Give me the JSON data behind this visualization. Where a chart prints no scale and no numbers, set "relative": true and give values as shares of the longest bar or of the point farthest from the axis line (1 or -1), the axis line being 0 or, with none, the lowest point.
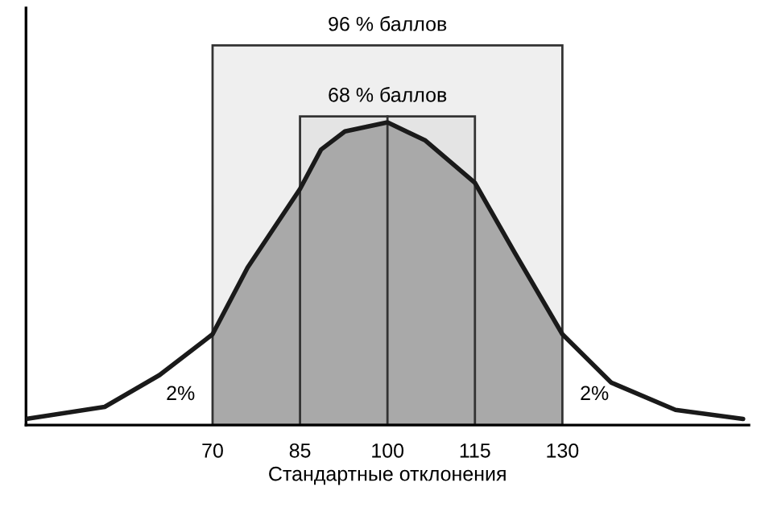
{
  "chart_data": {
    "type": "line",
    "relative": true,
    "xlabel": "Стандартные отклонения",
    "x": [
      38,
      51.5,
      60.9,
      70,
      76,
      85,
      88.6,
      92.7,
      100,
      106.5,
      115,
      121.8,
      130,
      138.4,
      149.4,
      161
    ],
    "series": [
      {
        "type": "area",
        "color": "#a9a9a9",
        "x": [
          70,
          76,
          85,
          88.6,
          92.7,
          100,
          106.5,
          115,
          121.8,
          130
        ],
        "values": [
          0.3,
          0.52,
          0.78,
          0.91,
          0.97,
          1,
          0.94,
          0.8,
          0.57,
          0.3
        ]
      },
      {
        "color": "#1a1a1a",
        "values": [
          0.02,
          0.06,
          0.165,
          0.3,
          0.52,
          0.78,
          0.91,
          0.97,
          1,
          0.94,
          0.8,
          0.57,
          0.3,
          0.14,
          0.05,
          0.02
        ]
      }
    ],
    "xlim": [
      38,
      162
    ],
    "xticks": [
      70,
      85,
      100,
      115,
      130
    ],
    "tick_labels": "x",
    "grid": false,
    "legend": false,
    "bands": [
      {
        "axis": "x",
        "from": 70,
        "to": 130,
        "label": "96 % баллов",
        "color": "#efefef"
      },
      {
        "axis": "x",
        "from": 85,
        "to": 115,
        "label": "68 % баллов",
        "color": "#e4e4e4"
      }
    ],
    "ref_lines": [
      {
        "axis": "x",
        "value": 100,
        "color": "#333333"
      }
    ],
    "annotations": [
      "2%",
      "2%"
    ]
  }
}
